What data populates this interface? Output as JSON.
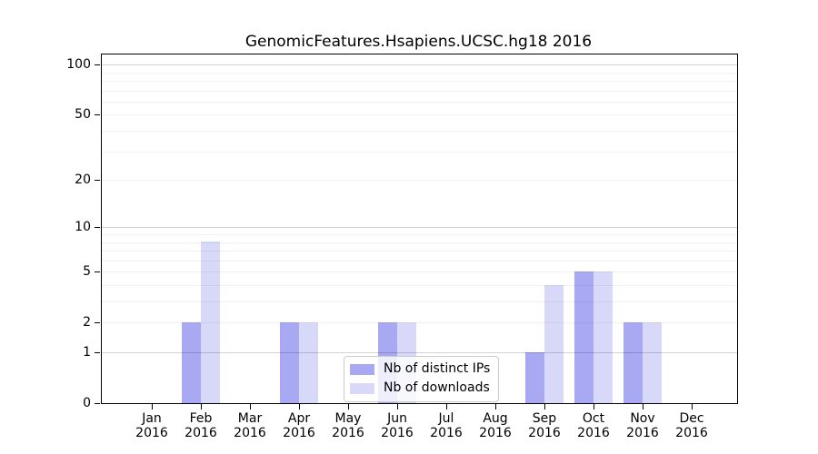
{
  "title": "GenomicFeatures.Hsapiens.UCSC.hg18 2016",
  "chart_data": {
    "type": "bar",
    "title": "GenomicFeatures.Hsapiens.UCSC.hg18 2016",
    "months": [
      "Jan",
      "Feb",
      "Mar",
      "Apr",
      "May",
      "Jun",
      "Jul",
      "Aug",
      "Sep",
      "Oct",
      "Nov",
      "Dec"
    ],
    "year": "2016",
    "series": [
      {
        "name": "Nb of distinct IPs",
        "color": "#a9a9f3",
        "values": [
          0,
          2,
          0,
          2,
          0,
          2,
          0,
          0,
          1,
          5,
          2,
          0
        ]
      },
      {
        "name": "Nb of downloads",
        "color": "#d8d8f9",
        "values": [
          0,
          8,
          0,
          2,
          0,
          2,
          0,
          0,
          4,
          5,
          2,
          0
        ]
      }
    ],
    "yscale": "log1p",
    "ylim": [
      0,
      115
    ],
    "yticks": [
      0,
      1,
      2,
      5,
      10,
      20,
      50,
      100
    ],
    "major_gridlines": [
      1,
      10,
      100
    ],
    "minor_gridlines": [
      2,
      3,
      4,
      5,
      6,
      7,
      8,
      9,
      20,
      30,
      40,
      50,
      60,
      70,
      80,
      90
    ],
    "grid": "on",
    "legend_position": "lower center",
    "colors": {
      "axis": "#000000",
      "legend_border": "#cccccc"
    }
  }
}
